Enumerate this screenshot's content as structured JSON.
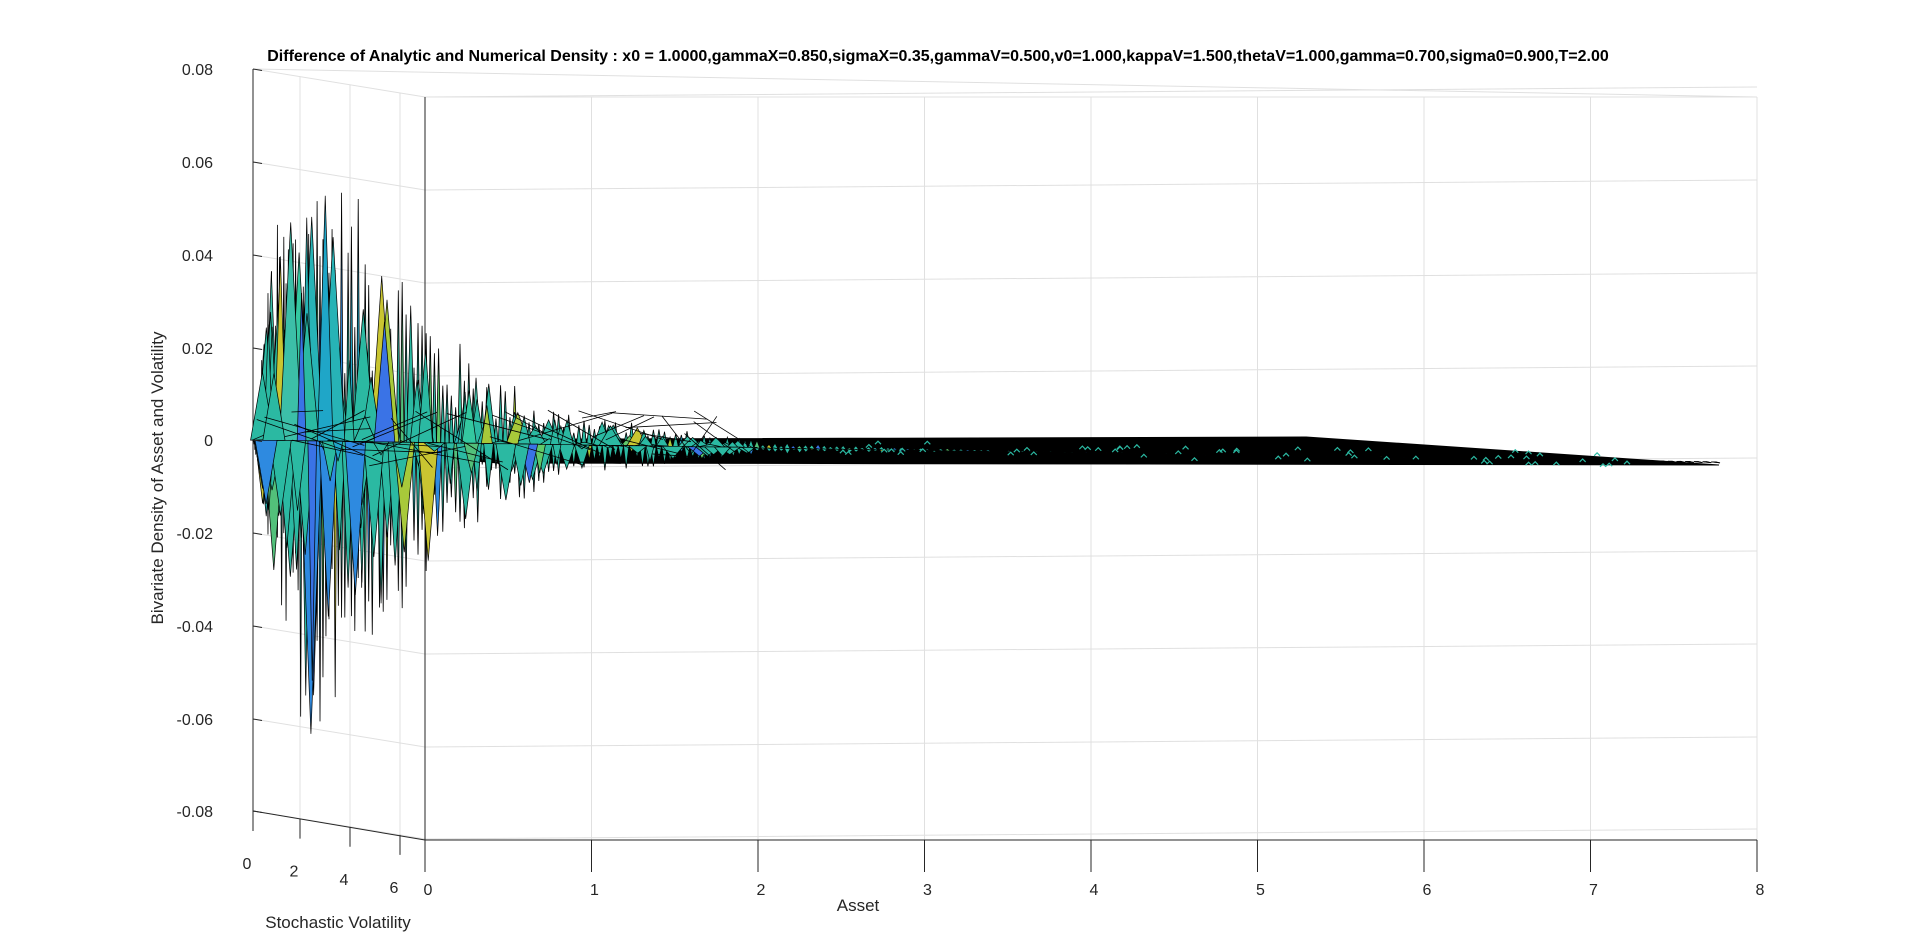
{
  "chart_data": {
    "type": "surface",
    "title": "Difference of Analytic and Numerical Density  : x0 = 1.0000,gammaX=0.850,sigmaX=0.35,gammaV=0.500,v0=1.000,kappaV=1.500,thetaV=1.000,gamma=0.700,sigma0=0.900,T=2.00",
    "xlabel": "Asset",
    "ylabel": "Stochastic Volatility",
    "zlabel": "Bivariate Density of Asset and Volatility",
    "x_ticks": [
      "0",
      "1",
      "2",
      "3",
      "4",
      "5",
      "6",
      "7",
      "8"
    ],
    "y_ticks": [
      "0",
      "2",
      "4",
      "6"
    ],
    "z_ticks": [
      "0.08",
      "0.06",
      "0.04",
      "0.02",
      "0",
      "-0.02",
      "-0.04",
      "-0.06",
      "-0.08"
    ],
    "xlim": [
      0,
      8
    ],
    "ylim": [
      0,
      7
    ],
    "zlim": [
      -0.08,
      0.08
    ],
    "grid": true,
    "colormap": "parula",
    "colors": {
      "surface_mid": "#2bb9a2",
      "edge": "#000000",
      "grid": "#e0e0e0",
      "axis": "#262626"
    },
    "envelope": {
      "x": [
        0.0,
        0.1,
        0.2,
        0.3,
        0.4,
        0.5,
        0.6,
        0.8,
        1.0,
        1.2,
        1.5,
        1.8,
        2.2,
        2.6,
        3.0,
        3.5,
        4.0,
        5.0,
        6.0,
        7.0,
        7.8
      ],
      "z_max": [
        0.0,
        0.045,
        0.055,
        0.06,
        0.062,
        0.055,
        0.05,
        0.04,
        0.025,
        0.018,
        0.01,
        0.006,
        0.004,
        0.002,
        0.001,
        0.0005,
        0.0002,
        0.0001,
        0.0001,
        0.0001,
        0.0
      ],
      "z_min": [
        0.0,
        -0.03,
        -0.05,
        -0.076,
        -0.06,
        -0.05,
        -0.045,
        -0.035,
        -0.025,
        -0.018,
        -0.01,
        -0.006,
        -0.004,
        -0.002,
        -0.001,
        -0.0005,
        -0.0002,
        -0.0001,
        -0.0001,
        -0.0001,
        0.0
      ]
    }
  }
}
